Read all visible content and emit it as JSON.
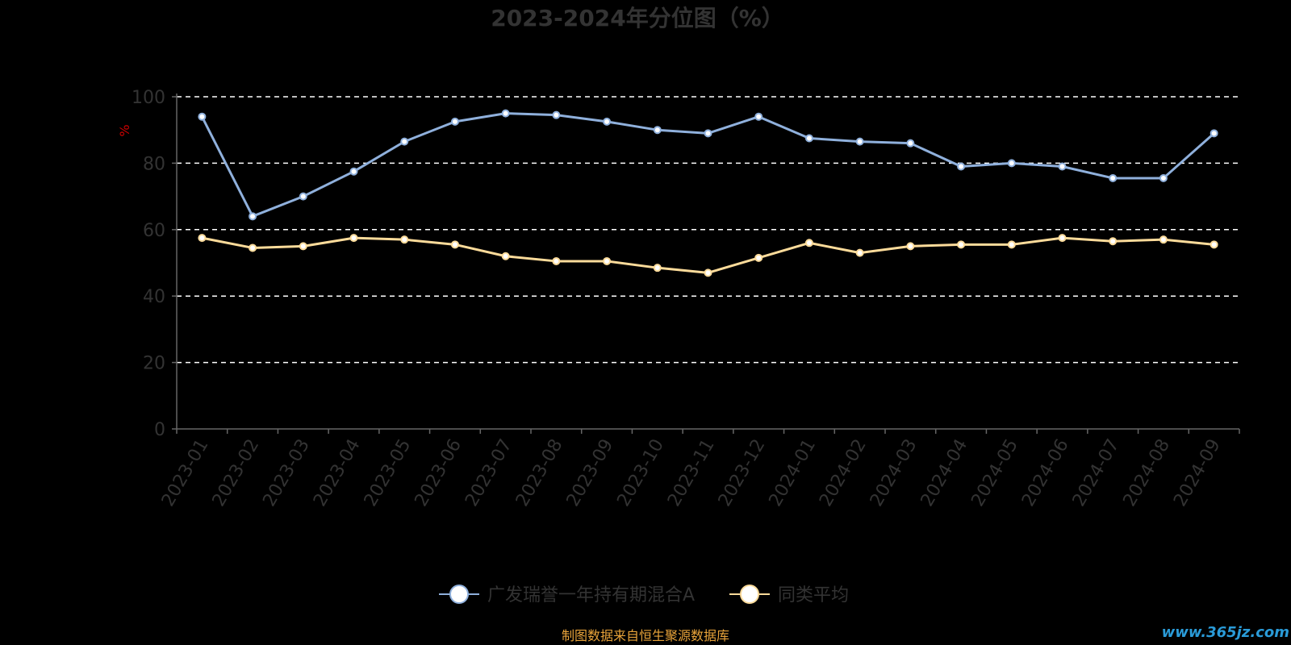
{
  "chart_data": {
    "type": "line",
    "title": "2023-2024年分位图（%）",
    "ylabel": "%",
    "xlabel": "",
    "ylim": [
      0,
      100
    ],
    "yticks": [
      0,
      20,
      40,
      60,
      80,
      100
    ],
    "grid": true,
    "legend_position": "bottom-center",
    "categories": [
      "2023-01",
      "2023-02",
      "2023-03",
      "2023-04",
      "2023-05",
      "2023-06",
      "2023-07",
      "2023-08",
      "2023-09",
      "2023-10",
      "2023-11",
      "2023-12",
      "2024-01",
      "2024-02",
      "2024-03",
      "2024-04",
      "2024-05",
      "2024-06",
      "2024-07",
      "2024-08",
      "2024-09"
    ],
    "series": [
      {
        "name": "广发瑞誉一年持有期混合A",
        "color": "#8fb0dc",
        "values": [
          94,
          64,
          70,
          77.5,
          86.5,
          92.5,
          95,
          94.5,
          92.5,
          90,
          89,
          94,
          87.5,
          86.5,
          86,
          79,
          80,
          79,
          75.5,
          75.5,
          89
        ]
      },
      {
        "name": "同类平均",
        "color": "#fcdb9a",
        "values": [
          57.5,
          54.5,
          55,
          57.5,
          57,
          55.5,
          52,
          50.5,
          50.5,
          48.5,
          47,
          51.5,
          56,
          53,
          55,
          55.5,
          55.5,
          57.5,
          56.5,
          57,
          55.5
        ]
      }
    ]
  },
  "footer": {
    "source": "制图数据来自恒生聚源数据库",
    "watermark": "www.365jz.com"
  },
  "colors": {
    "grid": "#ffffff",
    "axis": "#666666",
    "text": "#333333",
    "source": "#e8a33a",
    "y_unit": "#cc0000"
  }
}
